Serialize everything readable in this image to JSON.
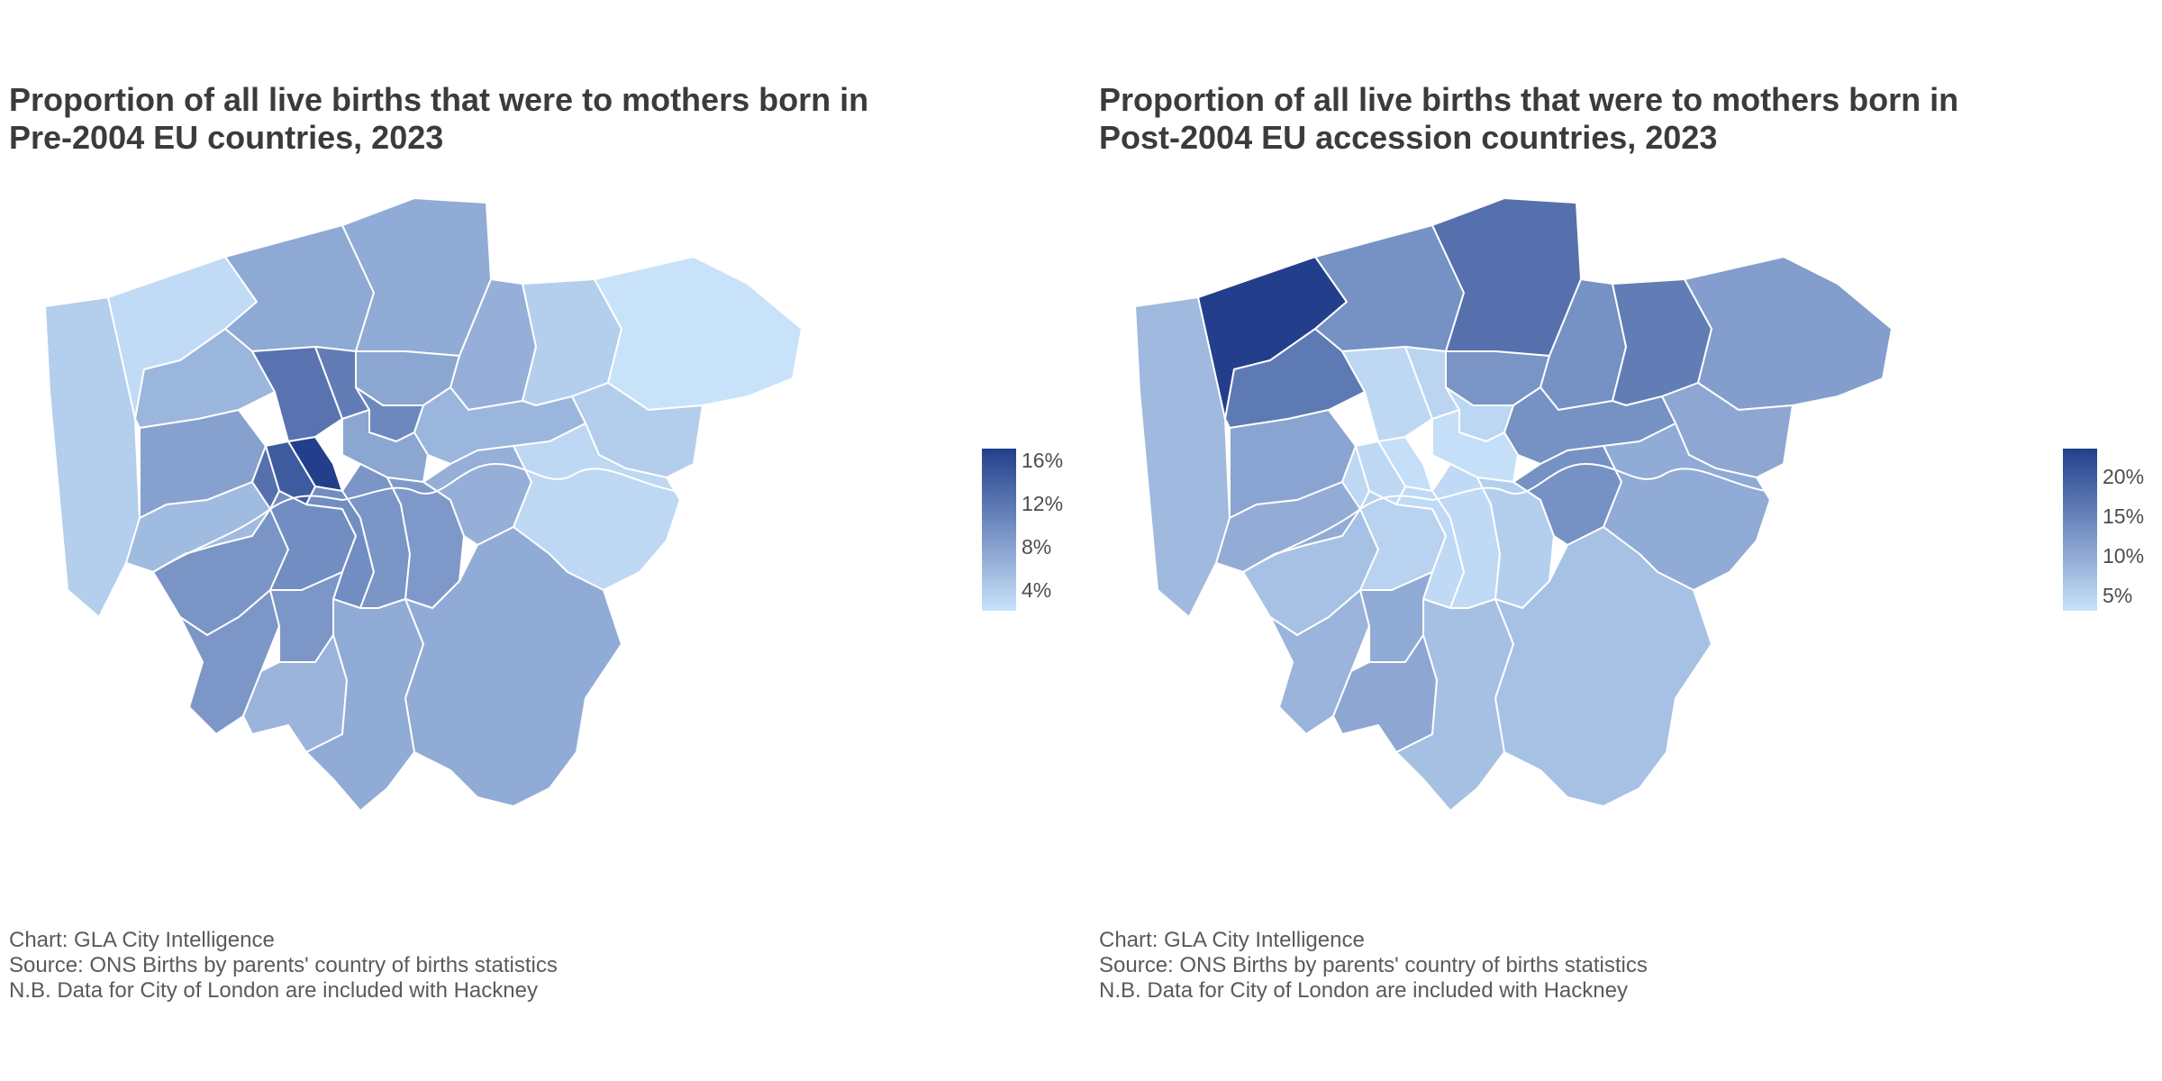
{
  "maps": [
    {
      "title_line1": "Proportion of all live births that were to mothers born in",
      "title_line2": "Pre-2004 EU countries, 2023",
      "legend": {
        "labels": [
          "16%",
          "12%",
          "8%",
          "4%"
        ],
        "color_low": "#c8e2fa",
        "color_high": "#233f8c"
      },
      "caption": {
        "line1": "Chart: GLA City Intelligence",
        "line2": "Source: ONS Births by parents' country of births statistics",
        "line3": "N.B. Data for City of London are included with Hackney"
      }
    },
    {
      "title_line1": "Proportion of all live births that were to mothers born in",
      "title_line2": "Post-2004 EU accession countries, 2023",
      "legend": {
        "labels": [
          "20%",
          "15%",
          "10%",
          "5%"
        ],
        "color_low": "#c8e2fa",
        "color_high": "#233f8c"
      },
      "caption": {
        "line1": "Chart: GLA City Intelligence",
        "line2": "Source: ONS Births by parents' country of births statistics",
        "line3": "N.B. Data for City of London are included with Hackney"
      }
    }
  ],
  "map_fill_levels": {
    "pre_2004": {
      "Hillingdon": 0.12,
      "Harrow": 0.04,
      "Barnet": 0.35,
      "Enfield": 0.34,
      "Brent": 0.27,
      "Haringey": 0.37,
      "Waltham Forest": 0.31,
      "Redbridge": 0.12,
      "Havering": 0.0,
      "Barking and Dagenham": 0.13,
      "Ealing": 0.4,
      "Hounslow": 0.24,
      "Hammersmith and Fulham": 0.7,
      "Kensington and Chelsea": 0.83,
      "Westminster": 1.0,
      "Camden": 0.68,
      "Islington": 0.62,
      "Hackney": 0.55,
      "Tower Hamlets": 0.37,
      "Newham": 0.27,
      "Richmond upon Thames": 0.48,
      "Wandsworth": 0.52,
      "Lambeth": 0.52,
      "Southwark": 0.47,
      "Lewisham": 0.45,
      "Greenwich": 0.31,
      "Bexley": 0.06,
      "Kingston upon Thames": 0.46,
      "Merton": 0.46,
      "Sutton": 0.28,
      "Croydon": 0.34,
      "Bromley": 0.34
    },
    "post_2004": {
      "Hillingdon": 0.25,
      "Harrow": 1.0,
      "Barnet": 0.5,
      "Enfield": 0.7,
      "Brent": 0.64,
      "Haringey": 0.48,
      "Waltham Forest": 0.5,
      "Redbridge": 0.62,
      "Havering": 0.42,
      "Barking and Dagenham": 0.36,
      "Ealing": 0.38,
      "Hounslow": 0.33,
      "Hammersmith and Fulham": 0.06,
      "Kensington and Chelsea": 0.06,
      "Westminster": 0.02,
      "Camden": 0.06,
      "Islington": 0.08,
      "Hackney": 0.07,
      "Tower Hamlets": 0.02,
      "Newham": 0.5,
      "Richmond upon Thames": 0.2,
      "Wandsworth": 0.1,
      "Lambeth": 0.05,
      "Southwark": 0.05,
      "Lewisham": 0.12,
      "Greenwich": 0.5,
      "Bexley": 0.34,
      "Kingston upon Thames": 0.28,
      "Merton": 0.34,
      "Sutton": 0.36,
      "Croydon": 0.21,
      "Bromley": 0.2
    }
  }
}
